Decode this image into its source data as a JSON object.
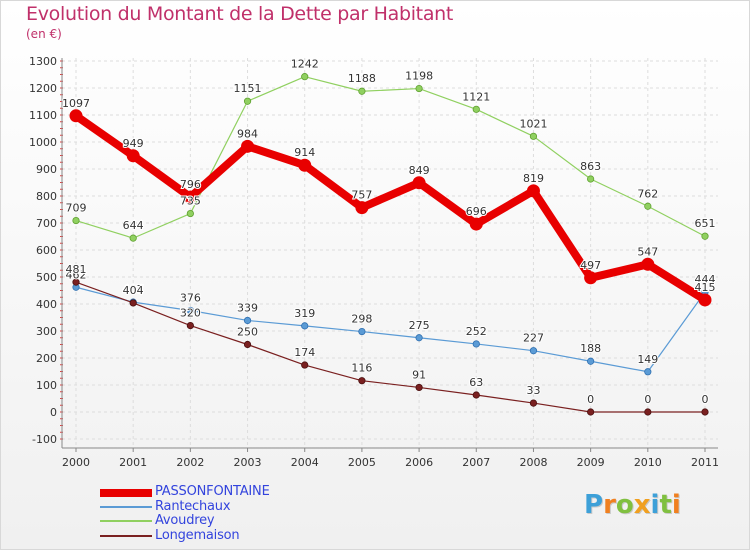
{
  "title": "Evolution du Montant de la Dette par Habitant",
  "subtitle": "(en €)",
  "chart_data": {
    "type": "line",
    "x": [
      "2000",
      "2001",
      "2002",
      "2003",
      "2004",
      "2005",
      "2006",
      "2007",
      "2008",
      "2009",
      "2010",
      "2011"
    ],
    "ylim": [
      -100,
      1300
    ],
    "yticks": [
      "-100",
      "0",
      "100",
      "200",
      "300",
      "400",
      "500",
      "600",
      "700",
      "800",
      "900",
      "1000",
      "1100",
      "1200",
      "1300"
    ],
    "grid": true,
    "legend_placement": "bottom-left",
    "series": [
      {
        "name": "PASSONFONTAINE",
        "color": "#e80000",
        "values": [
          1097,
          949,
          796,
          984,
          914,
          757,
          849,
          696,
          819,
          497,
          547,
          415
        ]
      },
      {
        "name": "Rantechaux",
        "color": "#5b9bd5",
        "values": [
          462,
          407,
          376,
          339,
          319,
          298,
          275,
          252,
          227,
          188,
          149,
          444
        ]
      },
      {
        "name": "Avoudrey",
        "color": "#90d060",
        "values": [
          709,
          644,
          735,
          1151,
          1242,
          1188,
          1198,
          1121,
          1021,
          863,
          762,
          651
        ]
      },
      {
        "name": "Longemaison",
        "color": "#7a2020",
        "values": [
          481,
          404,
          320,
          250,
          174,
          116,
          91,
          63,
          33,
          0,
          0,
          0
        ]
      }
    ]
  },
  "legend": [
    {
      "label": "PASSONFONTAINE",
      "color": "#e80000"
    },
    {
      "label": "Rantechaux",
      "color": "#5b9bd5"
    },
    {
      "label": "Avoudrey",
      "color": "#90d060"
    },
    {
      "label": "Longemaison",
      "color": "#7a2020"
    }
  ],
  "logo": {
    "letters": [
      "P",
      "r",
      "o",
      "x",
      "i",
      "t",
      "i"
    ],
    "colors": [
      "#3da0d8",
      "#f08020",
      "#80c040",
      "#f0a020",
      "#3da0d8",
      "#80c040",
      "#f08020"
    ]
  }
}
